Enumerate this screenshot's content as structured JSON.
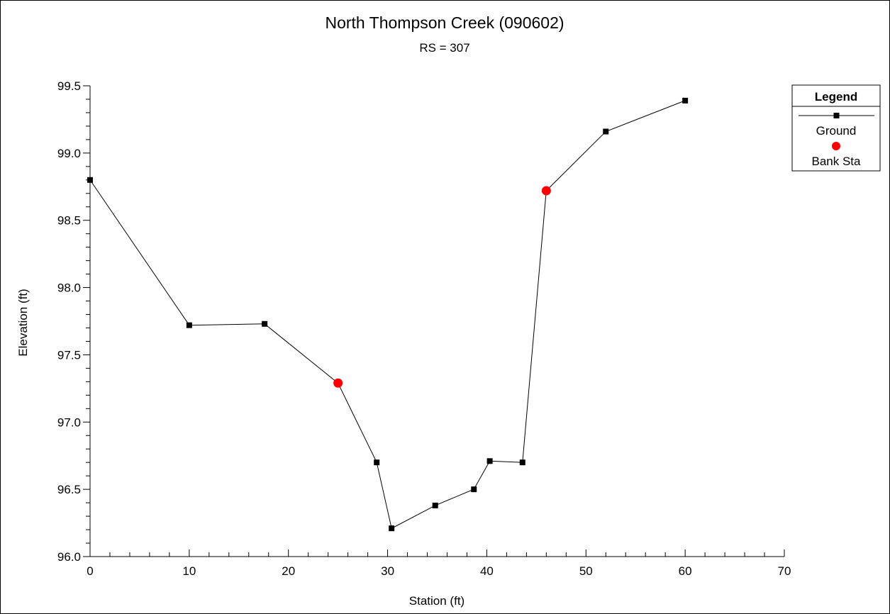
{
  "chart_data": {
    "type": "line",
    "title": "North Thompson Creek (090602)",
    "subtitle": "RS = 307",
    "xlabel": "Station (ft)",
    "ylabel": "Elevation (ft)",
    "xlim": [
      0,
      70
    ],
    "ylim": [
      96.0,
      99.5
    ],
    "x_ticks": [
      "0",
      "10",
      "20",
      "30",
      "40",
      "50",
      "60",
      "70"
    ],
    "y_ticks": [
      "96.0",
      "96.5",
      "97.0",
      "97.5",
      "98.0",
      "98.5",
      "99.0",
      "99.5"
    ],
    "grid": false,
    "legend": {
      "title": "Legend",
      "position": "top-right",
      "entries": [
        "Ground",
        "Bank Sta"
      ]
    },
    "series": [
      {
        "name": "Ground",
        "color": "#000000",
        "marker": "square",
        "x": [
          0,
          10,
          17.6,
          25,
          28.9,
          30.4,
          34.8,
          38.7,
          40.3,
          43.6,
          46,
          52,
          60
        ],
        "y": [
          98.8,
          97.72,
          97.73,
          97.29,
          96.7,
          96.21,
          96.38,
          96.5,
          96.71,
          96.7,
          98.72,
          99.16,
          99.39
        ]
      },
      {
        "name": "Bank Sta",
        "color": "#ff0000",
        "marker": "circle",
        "x": [
          25,
          46
        ],
        "y": [
          97.29,
          98.72
        ]
      }
    ]
  }
}
